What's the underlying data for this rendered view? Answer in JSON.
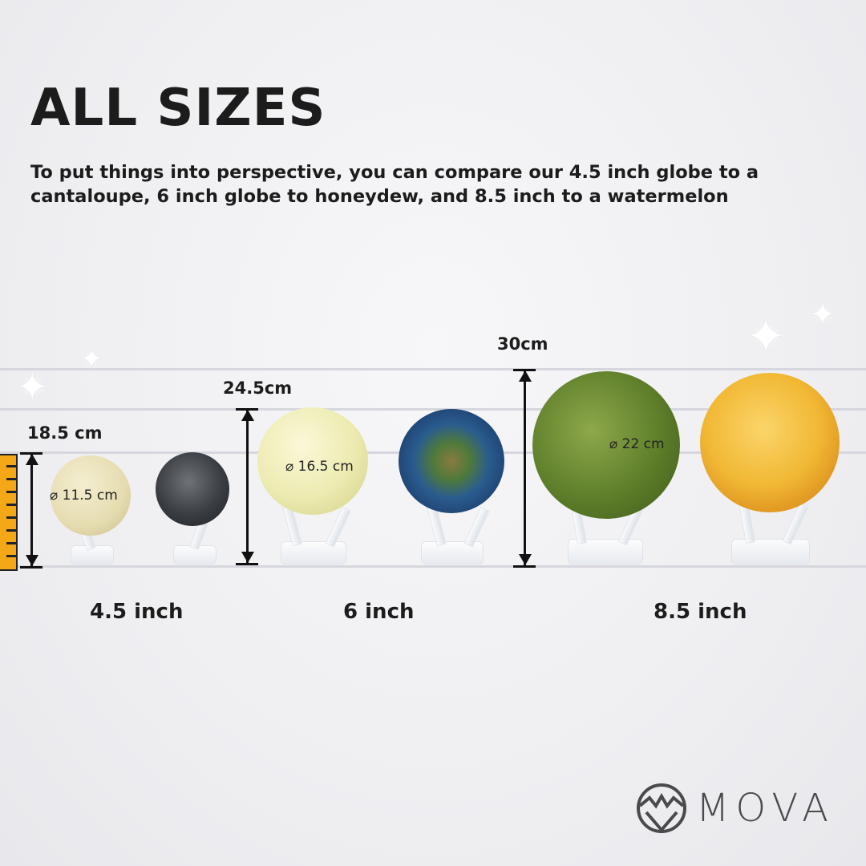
{
  "title": "ALL SIZES",
  "subtitle": "To put things into perspective, you can compare our 4.5 inch globe to a cantaloupe, 6 inch globe to honeydew, and 8.5 inch to a watermelon",
  "heights": {
    "small": "18.5 cm",
    "medium": "24.5cm",
    "large": "30cm"
  },
  "diameters": {
    "small": "⌀ 11.5 cm",
    "medium": "⌀ 16.5 cm",
    "large": "⌀ 22 cm"
  },
  "sizes": {
    "small": "4.5 inch",
    "medium": "6 inch",
    "large": "8.5 inch"
  },
  "items": [
    "cantaloupe",
    "moon-globe",
    "honeydew",
    "earth-globe",
    "watermelon",
    "sun-globe"
  ],
  "brand": {
    "name": "MOVA",
    "color": "#4a4a4a"
  },
  "colors": {
    "ruler": "#f4a818",
    "text": "#1c1c1c"
  }
}
